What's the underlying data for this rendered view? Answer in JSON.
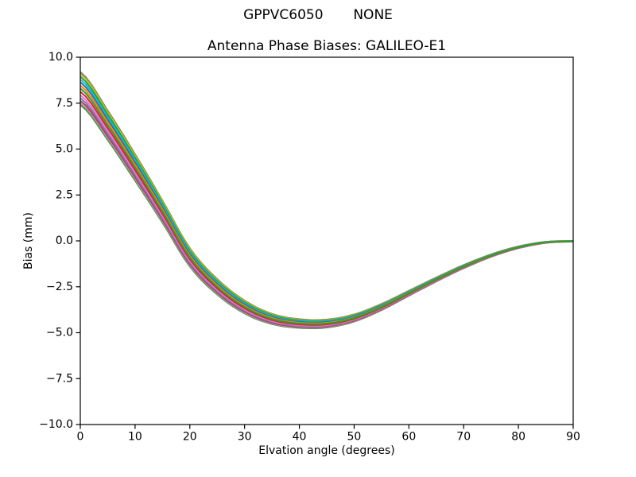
{
  "figure": {
    "suptitle": "GPPVC6050       NONE",
    "background": "#ffffff"
  },
  "chart_data": {
    "type": "line",
    "title": "Antenna Phase Biases: GALILEO-E1",
    "xlabel": "Elvation angle (degrees)",
    "ylabel": "Bias (mm)",
    "xlim": [
      0,
      90
    ],
    "ylim": [
      -10.0,
      10.0
    ],
    "grid": false,
    "legend": "none",
    "axis_color": "#000000",
    "x_ticks": [
      0,
      10,
      20,
      30,
      40,
      50,
      60,
      70,
      80,
      90
    ],
    "x_tick_labels": [
      "0",
      "10",
      "20",
      "30",
      "40",
      "50",
      "60",
      "70",
      "80",
      "90"
    ],
    "y_ticks": [
      10.0,
      7.5,
      5.0,
      2.5,
      0.0,
      -2.5,
      -5.0,
      -7.5,
      -10.0
    ],
    "y_tick_labels": [
      "10.0",
      "7.5",
      "5.0",
      "2.5",
      "0.0",
      "−2.5",
      "−5.0",
      "−7.5",
      "−10.0"
    ],
    "x_knots_deg": [
      0,
      5,
      10,
      15,
      20,
      25,
      30,
      35,
      40,
      45,
      50,
      55,
      60,
      65,
      70,
      75,
      80,
      85,
      90
    ],
    "center_bias_mm": [
      8.3,
      6.3,
      4.0,
      1.6,
      -0.9,
      -2.5,
      -3.6,
      -4.25,
      -4.5,
      -4.5,
      -4.2,
      -3.6,
      -2.85,
      -2.1,
      -1.4,
      -0.8,
      -0.35,
      -0.08,
      -0.02
    ],
    "half_spread_mm": [
      0.9,
      0.8,
      0.72,
      0.6,
      0.5,
      0.42,
      0.35,
      0.28,
      0.24,
      0.22,
      0.2,
      0.17,
      0.14,
      0.11,
      0.09,
      0.07,
      0.05,
      0.03,
      0.02
    ],
    "series": [
      {
        "name": "line-01",
        "color": "#7f7f7f",
        "offset_factor": 1.0
      },
      {
        "name": "line-02",
        "color": "#2ca02c",
        "offset_factor": -1.0
      },
      {
        "name": "line-03",
        "color": "#e377c2",
        "offset_factor": -0.88
      },
      {
        "name": "line-04",
        "color": "#bcbd22",
        "offset_factor": 0.88
      },
      {
        "name": "line-05",
        "color": "#8c564b",
        "offset_factor": -0.74
      },
      {
        "name": "line-06",
        "color": "#2ca02c",
        "offset_factor": 0.72
      },
      {
        "name": "line-07",
        "color": "#9467bd",
        "offset_factor": -0.58
      },
      {
        "name": "line-08",
        "color": "#17becf",
        "offset_factor": 0.55
      },
      {
        "name": "line-09",
        "color": "#e377c2",
        "offset_factor": -0.4
      },
      {
        "name": "line-10",
        "color": "#1f77b4",
        "offset_factor": 0.38
      },
      {
        "name": "line-11",
        "color": "#d62728",
        "offset_factor": -0.2
      },
      {
        "name": "line-12",
        "color": "#ff7f0e",
        "offset_factor": 0.18
      },
      {
        "name": "line-13",
        "color": "#2ca02c",
        "offset_factor": 0.0
      }
    ]
  }
}
